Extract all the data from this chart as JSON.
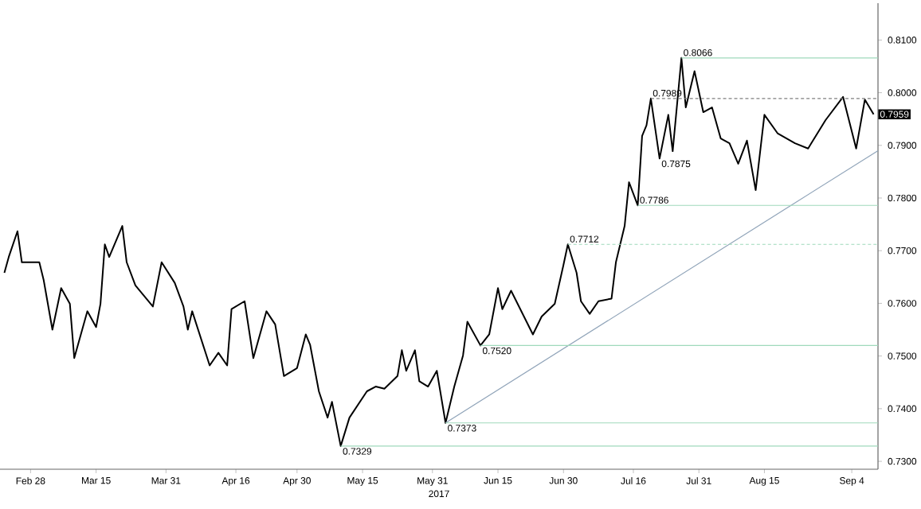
{
  "chart_data": {
    "type": "line",
    "xlabel": "2017",
    "xlim": [
      "2017-02-21",
      "2017-09-10"
    ],
    "ylim": [
      0.7285,
      0.817
    ],
    "xticks": [
      {
        "value": "2017-02-28",
        "label": "Feb 28"
      },
      {
        "value": "2017-03-15",
        "label": "Mar 15"
      },
      {
        "value": "2017-03-31",
        "label": "Mar 31"
      },
      {
        "value": "2017-04-16",
        "label": "Apr 16"
      },
      {
        "value": "2017-04-30",
        "label": "Apr 30"
      },
      {
        "value": "2017-05-15",
        "label": "May 15"
      },
      {
        "value": "2017-05-31",
        "label": "May 31"
      },
      {
        "value": "2017-06-15",
        "label": "Jun 15"
      },
      {
        "value": "2017-06-30",
        "label": "Jun 30"
      },
      {
        "value": "2017-07-16",
        "label": "Jul 16"
      },
      {
        "value": "2017-07-31",
        "label": "Jul 31"
      },
      {
        "value": "2017-08-15",
        "label": "Aug 15"
      },
      {
        "value": "2017-09-04",
        "label": "Sep 4"
      }
    ],
    "yticks": [
      {
        "value": 0.73,
        "label": "0.7300"
      },
      {
        "value": 0.74,
        "label": "0.7400"
      },
      {
        "value": 0.75,
        "label": "0.7500"
      },
      {
        "value": 0.76,
        "label": "0.7600"
      },
      {
        "value": 0.77,
        "label": "0.7700"
      },
      {
        "value": 0.78,
        "label": "0.7800"
      },
      {
        "value": 0.79,
        "label": "0.7900"
      },
      {
        "value": 0.8,
        "label": "0.8000"
      },
      {
        "value": 0.81,
        "label": "0.8100"
      }
    ],
    "series": [
      {
        "color": "#000000",
        "x": [
          "2017-02-22",
          "2017-02-23",
          "2017-02-25",
          "2017-02-26",
          "2017-03-02",
          "2017-03-03",
          "2017-03-05",
          "2017-03-07",
          "2017-03-09",
          "2017-03-10",
          "2017-03-13",
          "2017-03-15",
          "2017-03-16",
          "2017-03-17",
          "2017-03-18",
          "2017-03-21",
          "2017-03-22",
          "2017-03-24",
          "2017-03-28",
          "2017-03-30",
          "2017-04-02",
          "2017-04-04",
          "2017-04-05",
          "2017-04-06",
          "2017-04-10",
          "2017-04-12",
          "2017-04-14",
          "2017-04-15",
          "2017-04-18",
          "2017-04-20",
          "2017-04-23",
          "2017-04-25",
          "2017-04-27",
          "2017-04-30",
          "2017-05-02",
          "2017-05-03",
          "2017-05-05",
          "2017-05-07",
          "2017-05-08",
          "2017-05-10",
          "2017-05-12",
          "2017-05-16",
          "2017-05-18",
          "2017-05-20",
          "2017-05-23",
          "2017-05-24",
          "2017-05-25",
          "2017-05-27",
          "2017-05-28",
          "2017-05-30",
          "2017-06-01",
          "2017-06-03",
          "2017-06-05",
          "2017-06-07",
          "2017-06-08",
          "2017-06-11",
          "2017-06-13",
          "2017-06-15",
          "2017-06-16",
          "2017-06-18",
          "2017-06-23",
          "2017-06-25",
          "2017-06-28",
          "2017-06-30",
          "2017-07-01",
          "2017-07-03",
          "2017-07-04",
          "2017-07-06",
          "2017-07-08",
          "2017-07-11",
          "2017-07-12",
          "2017-07-14",
          "2017-07-15",
          "2017-07-17",
          "2017-07-18",
          "2017-07-19",
          "2017-07-20",
          "2017-07-22",
          "2017-07-24",
          "2017-07-25",
          "2017-07-27",
          "2017-07-28",
          "2017-07-30",
          "2017-08-01",
          "2017-08-03",
          "2017-08-05",
          "2017-08-07",
          "2017-08-09",
          "2017-08-11",
          "2017-08-13",
          "2017-08-15",
          "2017-08-18",
          "2017-08-22",
          "2017-08-25",
          "2017-08-29",
          "2017-09-02",
          "2017-09-05",
          "2017-09-07",
          "2017-09-09"
        ],
        "values": [
          0.7658,
          0.7688,
          0.7737,
          0.7678,
          0.7678,
          0.7644,
          0.755,
          0.7629,
          0.7599,
          0.7496,
          0.7585,
          0.7555,
          0.7599,
          0.7712,
          0.7688,
          0.7747,
          0.7678,
          0.7634,
          0.7594,
          0.7678,
          0.7639,
          0.7594,
          0.755,
          0.7585,
          0.7482,
          0.7506,
          0.7482,
          0.7589,
          0.7604,
          0.7496,
          0.7585,
          0.756,
          0.7462,
          0.7477,
          0.7541,
          0.7521,
          0.7433,
          0.7383,
          0.7413,
          0.7329,
          0.7383,
          0.7433,
          0.7442,
          0.7438,
          0.7462,
          0.7511,
          0.7472,
          0.7511,
          0.7452,
          0.7442,
          0.7472,
          0.7373,
          0.7442,
          0.7501,
          0.7565,
          0.752,
          0.7541,
          0.7629,
          0.7589,
          0.7624,
          0.7541,
          0.7575,
          0.7599,
          0.7673,
          0.7712,
          0.7658,
          0.7604,
          0.758,
          0.7604,
          0.7609,
          0.7678,
          0.7747,
          0.783,
          0.7786,
          0.7918,
          0.7938,
          0.7989,
          0.7875,
          0.7958,
          0.7889,
          0.8066,
          0.7972,
          0.8041,
          0.7963,
          0.7972,
          0.7913,
          0.7904,
          0.7865,
          0.7909,
          0.7815,
          0.7958,
          0.7923,
          0.7904,
          0.7894,
          0.7948,
          0.7992,
          0.7894,
          0.7987,
          0.7959
        ]
      },
      {
        "color": "#8fa3b8",
        "x": [
          "2017-06-03",
          "2017-09-10"
        ],
        "values": [
          0.7373,
          0.789
        ]
      },
      {
        "color": "#9fd9bb",
        "x": [
          "2017-07-27",
          "2017-09-10"
        ],
        "values": [
          0.8066,
          0.8066
        ]
      },
      {
        "color": "#808080",
        "line_style": "dashed",
        "x": [
          "2017-07-20",
          "2017-09-10"
        ],
        "values": [
          0.7989,
          0.7989
        ]
      },
      {
        "color": "#9fd9bb",
        "x": [
          "2017-07-17",
          "2017-09-10"
        ],
        "values": [
          0.7786,
          0.7786
        ]
      },
      {
        "color": "#9fd9bb",
        "line_style": "dashed",
        "x": [
          "2017-07-01",
          "2017-09-10"
        ],
        "values": [
          0.7712,
          0.7712
        ]
      },
      {
        "color": "#9fd9bb",
        "x": [
          "2017-06-11",
          "2017-09-10"
        ],
        "values": [
          0.752,
          0.752
        ]
      },
      {
        "color": "#9fd9bb",
        "x": [
          "2017-06-03",
          "2017-09-10"
        ],
        "values": [
          0.7373,
          0.7373
        ]
      },
      {
        "color": "#9fd9bb",
        "x": [
          "2017-05-10",
          "2017-09-10"
        ],
        "values": [
          0.7329,
          0.7329
        ]
      }
    ],
    "annotations": [
      {
        "text": "0.8066",
        "x": "2017-07-27",
        "y": 0.8066
      },
      {
        "text": "0.7989",
        "x": "2017-07-20",
        "y": 0.7989
      },
      {
        "text": "0.7875",
        "x": "2017-07-22",
        "y": 0.7875
      },
      {
        "text": "0.7786",
        "x": "2017-07-17",
        "y": 0.7786
      },
      {
        "text": "0.7712",
        "x": "2017-07-01",
        "y": 0.7712
      },
      {
        "text": "0.7520",
        "x": "2017-06-11",
        "y": 0.752
      },
      {
        "text": "0.7373",
        "x": "2017-06-03",
        "y": 0.7373
      },
      {
        "text": "0.7329",
        "x": "2017-05-10",
        "y": 0.7329
      },
      {
        "text": "0.7959",
        "x": "2017-09-10",
        "y": 0.7959
      }
    ]
  }
}
